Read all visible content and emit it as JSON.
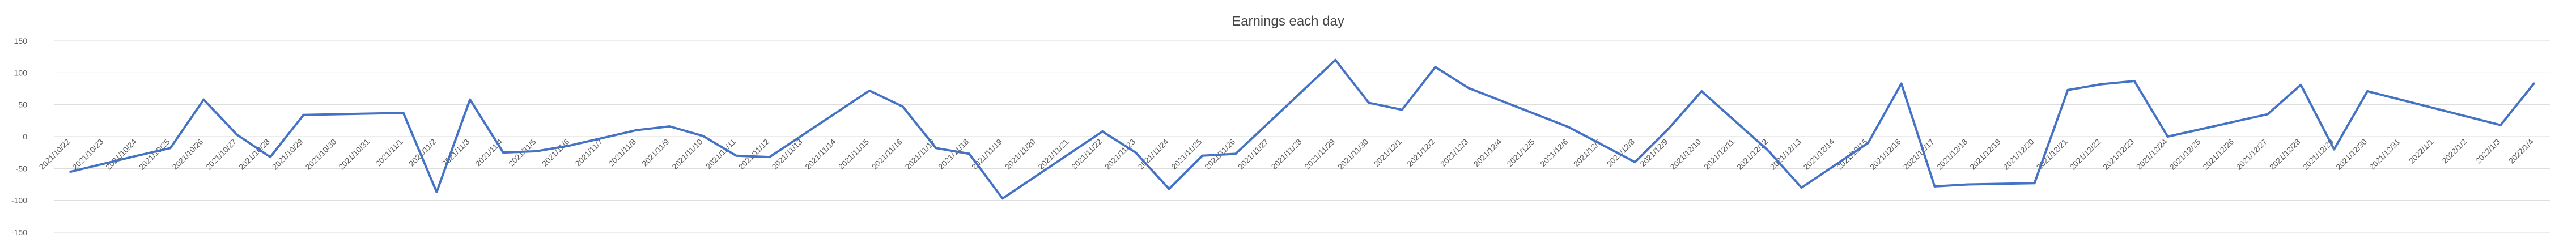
{
  "chart_data": {
    "type": "line",
    "title": "Earnings each day",
    "xlabel": "",
    "ylabel": "",
    "ylim": [
      -150,
      150
    ],
    "yticks": [
      -150,
      -100,
      -50,
      0,
      50,
      100,
      150
    ],
    "grid": true,
    "legend": "none",
    "line_color": "#4472c4",
    "gridline_color": "#d9d9d9",
    "categories": [
      "2021/10/22",
      "2021/10/23",
      "2021/10/24",
      "2021/10/25",
      "2021/10/26",
      "2021/10/27",
      "2021/10/28",
      "2021/10/29",
      "2021/10/30",
      "2021/10/31",
      "2021/11/1",
      "2021/11/2",
      "2021/11/3",
      "2021/11/4",
      "2021/11/5",
      "2021/11/6",
      "2021/11/7",
      "2021/11/8",
      "2021/11/9",
      "2021/11/10",
      "2021/11/11",
      "2021/11/12",
      "2021/11/13",
      "2021/11/14",
      "2021/11/15",
      "2021/11/16",
      "2021/11/17",
      "2021/11/18",
      "2021/11/19",
      "2021/11/20",
      "2021/11/21",
      "2021/11/22",
      "2021/11/23",
      "2021/11/24",
      "2021/11/25",
      "2021/11/26",
      "2021/11/27",
      "2021/11/28",
      "2021/11/29",
      "2021/11/30",
      "2021/12/1",
      "2021/12/2",
      "2021/12/3",
      "2021/12/4",
      "2021/12/5",
      "2021/12/6",
      "2021/12/7",
      "2021/12/8",
      "2021/12/9",
      "2021/12/10",
      "2021/12/11",
      "2021/12/12",
      "2021/12/13",
      "2021/12/14",
      "2021/12/15",
      "2021/12/16",
      "2021/12/17",
      "2021/12/18",
      "2021/12/19",
      "2021/12/20",
      "2021/12/21",
      "2021/12/22",
      "2021/12/23",
      "2021/12/24",
      "2021/12/25",
      "2021/12/26",
      "2021/12/27",
      "2021/12/28",
      "2021/12/29",
      "2021/12/30",
      "2021/12/31",
      "2022/1/1",
      "2022/1/2",
      "2022/1/3",
      "2022/1/4"
    ],
    "points": [
      {
        "x": "2021/10/22",
        "y": -55
      },
      {
        "x": "2021/10/24",
        "y": -30
      },
      {
        "x": "2021/10/25",
        "y": -18
      },
      {
        "x": "2021/10/26",
        "y": 58
      },
      {
        "x": "2021/10/27",
        "y": 3
      },
      {
        "x": "2021/10/28",
        "y": -32
      },
      {
        "x": "2021/10/29",
        "y": 34
      },
      {
        "x": "2021/11/1",
        "y": 37
      },
      {
        "x": "2021/11/2",
        "y": -87
      },
      {
        "x": "2021/11/3",
        "y": 58
      },
      {
        "x": "2021/11/4",
        "y": -25
      },
      {
        "x": "2021/11/5",
        "y": -23
      },
      {
        "x": "2021/11/6",
        "y": -14
      },
      {
        "x": "2021/11/7",
        "y": -2
      },
      {
        "x": "2021/11/8",
        "y": 10
      },
      {
        "x": "2021/11/9",
        "y": 16
      },
      {
        "x": "2021/11/10",
        "y": 1
      },
      {
        "x": "2021/11/11",
        "y": -30
      },
      {
        "x": "2021/11/12",
        "y": -32
      },
      {
        "x": "2021/11/15",
        "y": 72
      },
      {
        "x": "2021/11/16",
        "y": 47
      },
      {
        "x": "2021/11/17",
        "y": -18
      },
      {
        "x": "2021/11/18",
        "y": -27
      },
      {
        "x": "2021/11/19",
        "y": -97
      },
      {
        "x": "2021/11/22",
        "y": 8
      },
      {
        "x": "2021/11/23",
        "y": -25
      },
      {
        "x": "2021/11/24",
        "y": -82
      },
      {
        "x": "2021/11/25",
        "y": -30
      },
      {
        "x": "2021/11/26",
        "y": -27
      },
      {
        "x": "2021/11/29",
        "y": 120
      },
      {
        "x": "2021/11/30",
        "y": 53
      },
      {
        "x": "2021/12/1",
        "y": 42
      },
      {
        "x": "2021/12/2",
        "y": 109
      },
      {
        "x": "2021/12/3",
        "y": 76
      },
      {
        "x": "2021/12/6",
        "y": 15
      },
      {
        "x": "2021/12/8",
        "y": -40
      },
      {
        "x": "2021/12/9",
        "y": 12
      },
      {
        "x": "2021/12/10",
        "y": 71
      },
      {
        "x": "2021/12/12",
        "y": -22
      },
      {
        "x": "2021/12/13",
        "y": -80
      },
      {
        "x": "2021/12/15",
        "y": -10
      },
      {
        "x": "2021/12/16",
        "y": 83
      },
      {
        "x": "2021/12/17",
        "y": -78
      },
      {
        "x": "2021/12/18",
        "y": -75
      },
      {
        "x": "2021/12/20",
        "y": -73
      },
      {
        "x": "2021/12/21",
        "y": 73
      },
      {
        "x": "2021/12/22",
        "y": 82
      },
      {
        "x": "2021/12/23",
        "y": 87
      },
      {
        "x": "2021/12/24",
        "y": 0
      },
      {
        "x": "2021/12/27",
        "y": 35
      },
      {
        "x": "2021/12/28",
        "y": 81
      },
      {
        "x": "2021/12/29",
        "y": -20
      },
      {
        "x": "2021/12/30",
        "y": 71
      },
      {
        "x": "2022/1/3",
        "y": 18
      },
      {
        "x": "2022/1/4",
        "y": 83
      }
    ]
  }
}
